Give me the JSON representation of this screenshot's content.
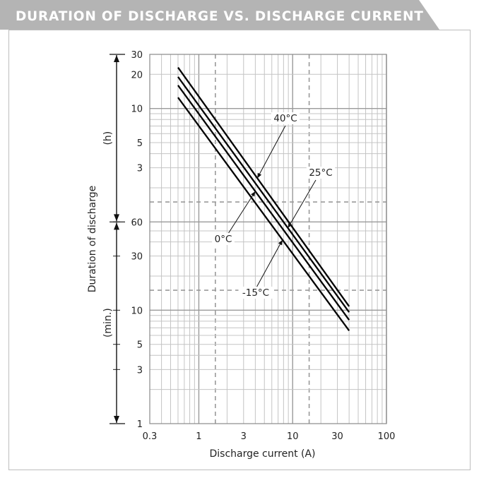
{
  "header": {
    "title": "DURATION OF DISCHARGE VS. DISCHARGE CURRENT",
    "bg_color": "#b4b4b4",
    "text_color": "#ffffff"
  },
  "chart_data": {
    "type": "line",
    "title": "DURATION OF DISCHARGE VS. DISCHARGE CURRENT",
    "xlabel": "Discharge current (A)",
    "ylabel": "Duration of discharge",
    "x_scale": "log",
    "y_scale": "log",
    "xlim": [
      0.3,
      100
    ],
    "ylim_minutes": [
      1,
      1800
    ],
    "x_ticks": [
      "0.3",
      "1",
      "3",
      "10",
      "30",
      "100"
    ],
    "y_ticks_hours": [
      "3",
      "5",
      "10",
      "20",
      "30"
    ],
    "y_ticks_minutes": [
      "1",
      "3",
      "5",
      "10",
      "30",
      "60"
    ],
    "y_unit_hours": "(h)",
    "y_unit_minutes": "(min.)",
    "grid": true,
    "series": [
      {
        "name": "40°C",
        "x": [
          0.6,
          40
        ],
        "y_minutes": [
          1380,
          10.8
        ]
      },
      {
        "name": "25°C",
        "x": [
          0.6,
          40
        ],
        "y_minutes": [
          1140,
          9.6
        ]
      },
      {
        "name": "0°C",
        "x": [
          0.6,
          40
        ],
        "y_minutes": [
          960,
          8.2
        ]
      },
      {
        "name": "-15°C",
        "x": [
          0.6,
          40
        ],
        "y_minutes": [
          750,
          6.6
        ]
      }
    ]
  }
}
